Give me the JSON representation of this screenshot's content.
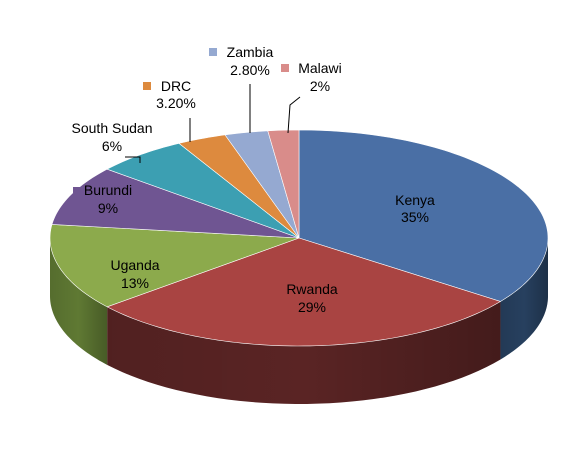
{
  "chart_data": {
    "type": "pie",
    "style": "3d",
    "title": "",
    "legend": "none",
    "labels": [
      "Kenya",
      "Rwanda",
      "Uganda",
      "Burundi",
      "South Sudan",
      "DRC",
      "Zambia",
      "Malawi"
    ],
    "values": [
      35,
      29,
      13,
      9,
      6,
      3.2,
      2.8,
      2
    ],
    "value_labels": [
      "35%",
      "29%",
      "13%",
      "9%",
      "6%",
      "3.20%",
      "2.80%",
      "2%"
    ],
    "colors": [
      "#4a6fa5",
      "#a94442",
      "#8caa4c",
      "#6f5592",
      "#3c9fb2",
      "#dd8a3e",
      "#95a9d1",
      "#d98c8a"
    ],
    "side_colors": [
      "#27405f",
      "#5a2424",
      "#5f7933",
      "#3e2d56",
      "#1f6a78",
      "#96541a",
      "#5f76a4",
      "#a25a58"
    ]
  }
}
